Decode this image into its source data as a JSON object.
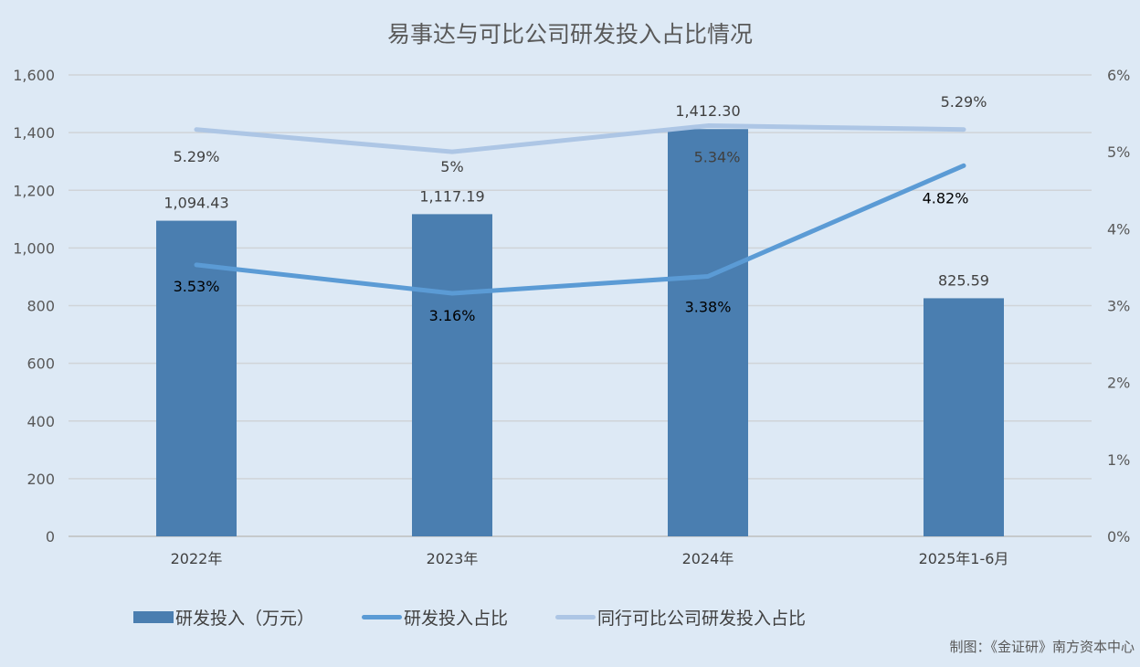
{
  "chart_data": {
    "type": "bar+line",
    "title": "易事达与可比公司研发投入占比情况",
    "categories": [
      "2022年",
      "2023年",
      "2024年",
      "2025年1-6月"
    ],
    "series": [
      {
        "name": "研发投入（万元）",
        "type": "bar",
        "axis": "left",
        "values": [
          1094.43,
          1117.19,
          1412.3,
          825.59
        ],
        "labels": [
          "1,094.43",
          "1,117.19",
          "1,412.30",
          "825.59"
        ],
        "color": "#4a7eb0"
      },
      {
        "name": "研发投入占比",
        "type": "line",
        "axis": "right",
        "values": [
          3.53,
          3.16,
          3.38,
          4.82
        ],
        "labels": [
          "3.53%",
          "3.16%",
          "3.38%",
          "4.82%"
        ],
        "color": "#5b9bd5"
      },
      {
        "name": "同行可比公司研发投入占比",
        "type": "line",
        "axis": "right",
        "values": [
          5.29,
          5.0,
          5.34,
          5.29
        ],
        "labels": [
          "5.29%",
          "5%",
          "5.34%",
          "5.29%"
        ],
        "color": "#adc6e5"
      }
    ],
    "left_axis": {
      "range": [
        0,
        1600
      ],
      "ticks": [
        "0",
        "200",
        "400",
        "600",
        "800",
        "1,000",
        "1,200",
        "1,400",
        "1,600"
      ]
    },
    "right_axis": {
      "range": [
        0,
        6
      ],
      "ticks": [
        "0%",
        "1%",
        "2%",
        "3%",
        "4%",
        "5%",
        "6%"
      ]
    },
    "grid": true,
    "legend_position": "bottom"
  },
  "credit": "制图：《金证研》南方资本中心"
}
